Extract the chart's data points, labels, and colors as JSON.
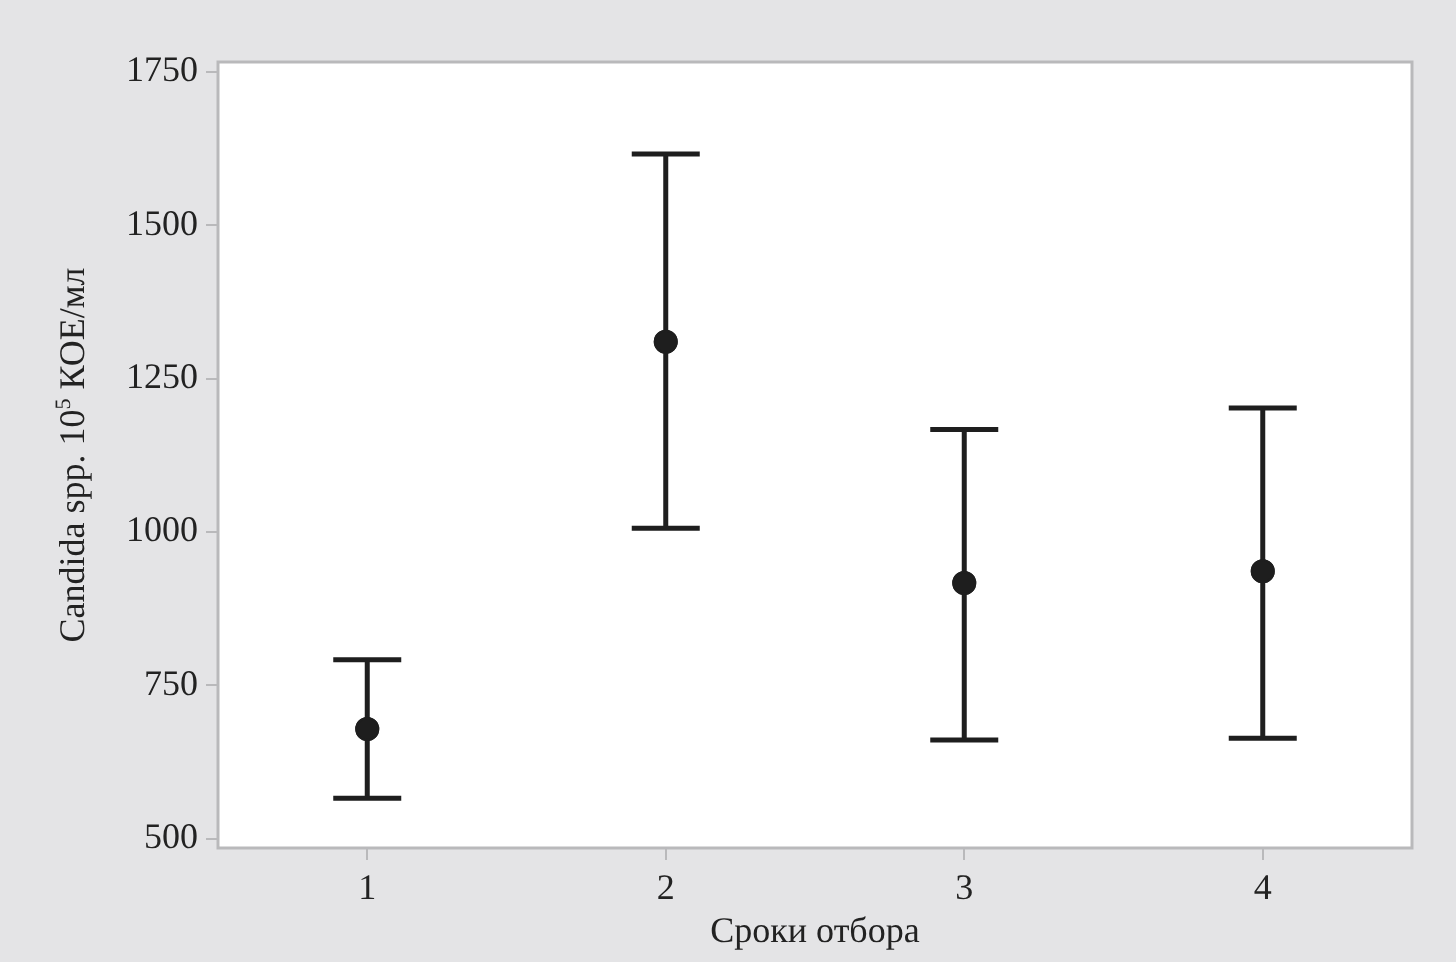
{
  "chart_data": {
    "type": "scatter",
    "xlabel": "Сроки отбора",
    "ylabel": "Candida spp. 10$^{5}$ КОЕ/мл",
    "categories": [
      "1",
      "2",
      "3",
      "4"
    ],
    "series": [
      {
        "color": "#1e1e1e",
        "values": [
          679,
          1310,
          917,
          936
        ],
        "errors": [
          [
            566,
            792
          ],
          [
            1006,
            1616
          ],
          [
            661,
            1167
          ],
          [
            664,
            1202
          ]
        ]
      }
    ],
    "ylim": [
      485,
      1766
    ],
    "yticks": [
      500,
      750,
      1000,
      1250,
      1500,
      1750
    ],
    "grid": false,
    "legend": false,
    "marker": "circle"
  }
}
